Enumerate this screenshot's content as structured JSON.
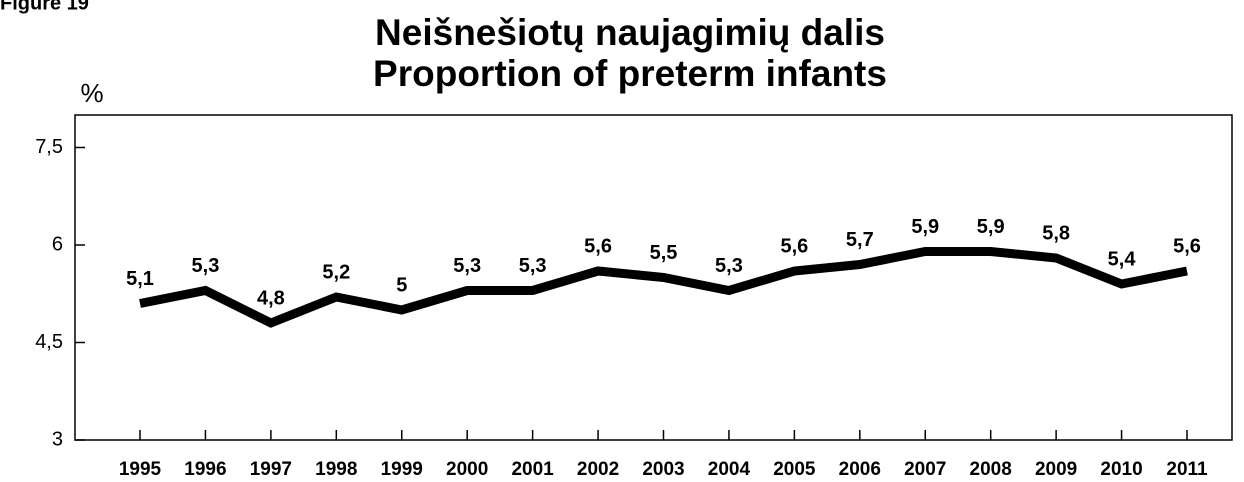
{
  "chart_data": {
    "type": "line",
    "figure_label": "Figure 19",
    "title": [
      "Neišnešiotų naujagimių dalis",
      "Proportion of preterm infants"
    ],
    "y_label": "%",
    "categories": [
      "1995",
      "1996",
      "1997",
      "1998",
      "1999",
      "2000",
      "2001",
      "2002",
      "2003",
      "2004",
      "2005",
      "2006",
      "2007",
      "2008",
      "2009",
      "2010",
      "2011"
    ],
    "series": [
      {
        "name": "Proportion of preterm infants",
        "color": "#000000",
        "values": [
          5.1,
          5.3,
          4.8,
          5.2,
          5,
          5.3,
          5.3,
          5.6,
          5.5,
          5.3,
          5.6,
          5.7,
          5.9,
          5.9,
          5.8,
          5.4,
          5.6
        ],
        "value_labels": [
          "5,1",
          "5,3",
          "4,8",
          "5,2",
          "5",
          "5,3",
          "5,3",
          "5,6",
          "5,5",
          "5,3",
          "5,6",
          "5,7",
          "5,9",
          "5,9",
          "5,8",
          "5,4",
          "5,6"
        ]
      }
    ],
    "ylim": [
      3,
      8
    ],
    "yticks": [
      3,
      {
        "value": 4.5,
        "label": "4,5"
      },
      6,
      {
        "value": 7.5,
        "label": "7,5"
      }
    ]
  }
}
